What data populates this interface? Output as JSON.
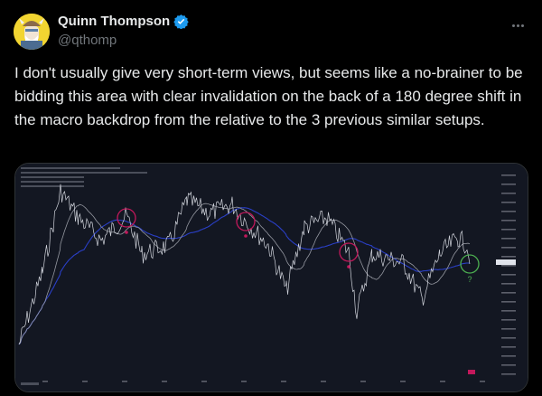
{
  "author": {
    "name": "Quinn Thompson",
    "handle": "@qthomp",
    "verified": true
  },
  "tweet": {
    "text": "I don't usually give very short-term views, but seems like a no-brainer to be bidding this area with clear invalidation on the back of a 180 degree shift in the macro backdrop from the relative to the 3 previous similar setups."
  },
  "media": {
    "annotation_label": "?",
    "colors": {
      "background": "#131722",
      "price": "#d1d4dc",
      "ma_fast": "#9598a1",
      "ma_slow": "#2a3fc7",
      "red_circle": "#c2185b",
      "green_circle": "#4caf50"
    }
  },
  "icons": {
    "more": "more-horizontal-icon",
    "verified": "verified-badge-icon"
  }
}
